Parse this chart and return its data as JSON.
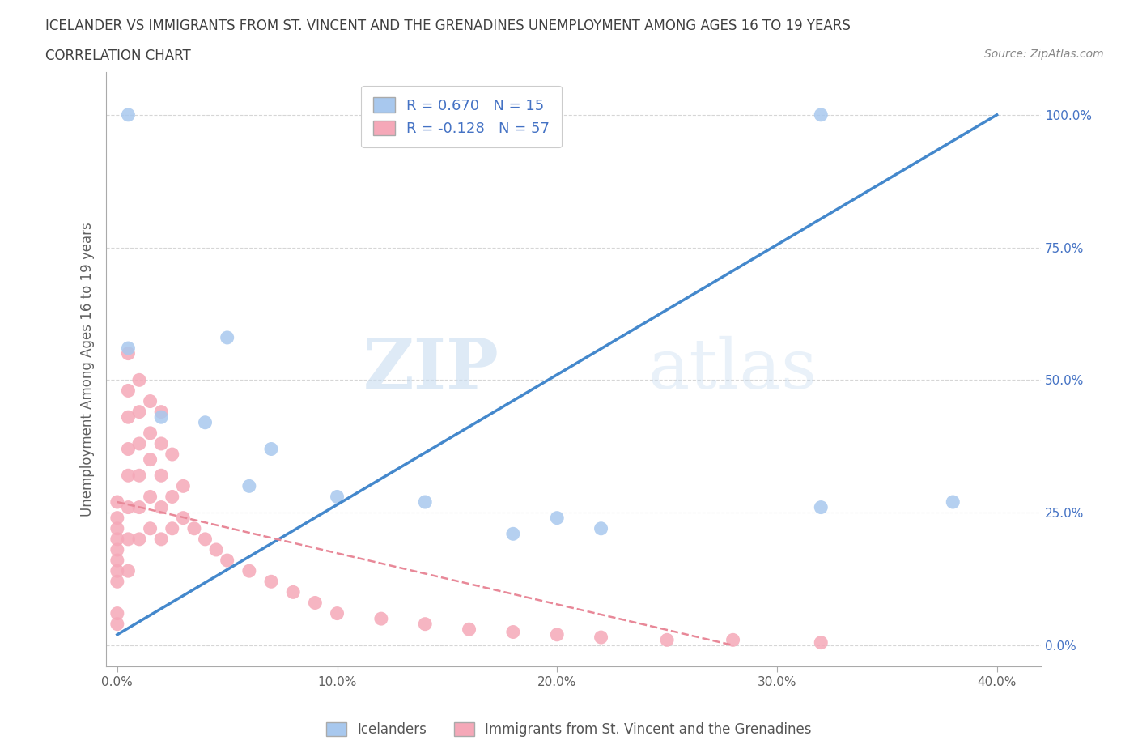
{
  "title_line1": "ICELANDER VS IMMIGRANTS FROM ST. VINCENT AND THE GRENADINES UNEMPLOYMENT AMONG AGES 16 TO 19 YEARS",
  "title_line2": "CORRELATION CHART",
  "source": "Source: ZipAtlas.com",
  "ylabel": "Unemployment Among Ages 16 to 19 years",
  "watermark_zip": "ZIP",
  "watermark_atlas": "atlas",
  "legend_blue_r": "R = 0.670",
  "legend_blue_n": "N = 15",
  "legend_pink_r": "R = -0.128",
  "legend_pink_n": "N = 57",
  "legend1": "Icelanders",
  "legend2": "Immigrants from St. Vincent and the Grenadines",
  "blue_color": "#A8C8EE",
  "pink_color": "#F5A8B8",
  "blue_line_color": "#4488CC",
  "pink_line_color": "#E88898",
  "blue_scatter_x": [
    0.005,
    0.005,
    0.32,
    0.02,
    0.04,
    0.07,
    0.1,
    0.14,
    0.32,
    0.2,
    0.18,
    0.05,
    0.22,
    0.06,
    0.38
  ],
  "blue_scatter_y": [
    1.0,
    0.56,
    1.0,
    0.43,
    0.42,
    0.37,
    0.28,
    0.27,
    0.26,
    0.24,
    0.21,
    0.58,
    0.22,
    0.3,
    0.27
  ],
  "pink_scatter_x": [
    0.0,
    0.0,
    0.0,
    0.0,
    0.0,
    0.0,
    0.0,
    0.0,
    0.0,
    0.0,
    0.005,
    0.005,
    0.005,
    0.005,
    0.005,
    0.005,
    0.005,
    0.005,
    0.01,
    0.01,
    0.01,
    0.01,
    0.01,
    0.01,
    0.015,
    0.015,
    0.015,
    0.015,
    0.015,
    0.02,
    0.02,
    0.02,
    0.02,
    0.02,
    0.025,
    0.025,
    0.025,
    0.03,
    0.03,
    0.035,
    0.04,
    0.045,
    0.05,
    0.06,
    0.07,
    0.08,
    0.09,
    0.1,
    0.12,
    0.14,
    0.16,
    0.18,
    0.2,
    0.22,
    0.25,
    0.28,
    0.32
  ],
  "pink_scatter_y": [
    0.27,
    0.24,
    0.22,
    0.2,
    0.18,
    0.16,
    0.14,
    0.12,
    0.06,
    0.04,
    0.55,
    0.48,
    0.43,
    0.37,
    0.32,
    0.26,
    0.2,
    0.14,
    0.5,
    0.44,
    0.38,
    0.32,
    0.26,
    0.2,
    0.46,
    0.4,
    0.35,
    0.28,
    0.22,
    0.44,
    0.38,
    0.32,
    0.26,
    0.2,
    0.36,
    0.28,
    0.22,
    0.3,
    0.24,
    0.22,
    0.2,
    0.18,
    0.16,
    0.14,
    0.12,
    0.1,
    0.08,
    0.06,
    0.05,
    0.04,
    0.03,
    0.025,
    0.02,
    0.015,
    0.01,
    0.01,
    0.005
  ],
  "blue_regline_x": [
    0.0,
    0.4
  ],
  "blue_regline_y": [
    0.02,
    1.0
  ],
  "pink_regline_x": [
    0.0,
    0.28
  ],
  "pink_regline_y": [
    0.27,
    0.0
  ],
  "xlim": [
    -0.005,
    0.42
  ],
  "ylim": [
    -0.04,
    1.08
  ],
  "x_ticks": [
    0.0,
    0.1,
    0.2,
    0.3,
    0.4
  ],
  "x_tick_labels": [
    "0.0%",
    "10.0%",
    "20.0%",
    "30.0%",
    "40.0%"
  ],
  "y_ticks": [
    0.0,
    0.25,
    0.5,
    0.75,
    1.0
  ],
  "y_tick_labels": [
    "0.0%",
    "25.0%",
    "50.0%",
    "75.0%",
    "100.0%"
  ],
  "grid_color": "#CCCCCC",
  "background_color": "#FFFFFF",
  "title_color": "#404040",
  "axis_label_color": "#606060",
  "tick_color": "#4472C4"
}
